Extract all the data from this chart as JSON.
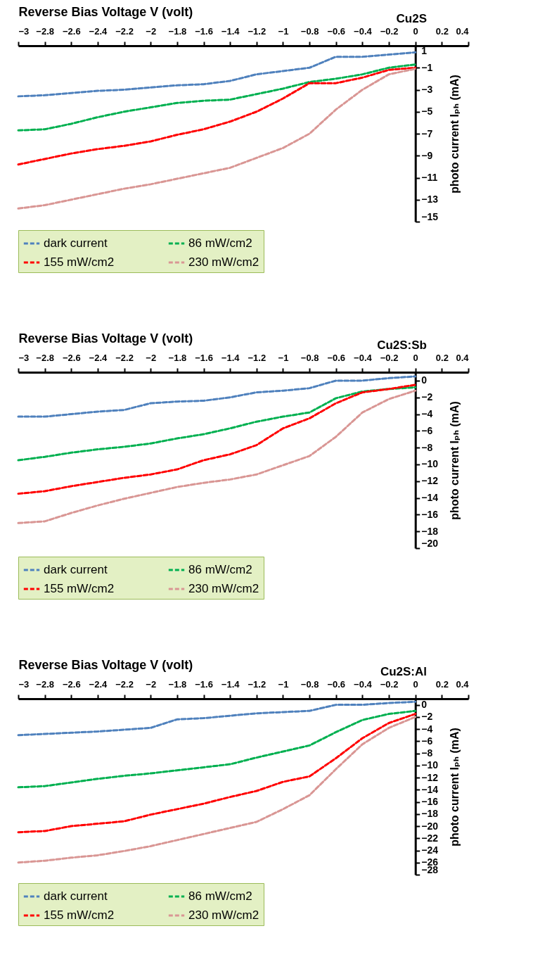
{
  "chart_data": [
    {
      "type": "line",
      "title": "Cu2S",
      "xlabel": "Reverse Bias Voltage    V (volt)",
      "ylabel": "photo current Iₚₕ (mA)",
      "x": [
        -3,
        -2.8,
        -2.6,
        -2.4,
        -2.2,
        -2,
        -1.8,
        -1.6,
        -1.4,
        -1.2,
        -1,
        -0.8,
        -0.6,
        -0.4,
        -0.2,
        0
      ],
      "xlim": [
        -3,
        0.4
      ],
      "xticks": [
        -3,
        -2.8,
        -2.6,
        -2.4,
        -2.2,
        -2,
        -1.8,
        -1.6,
        -1.4,
        -1.2,
        -1,
        -0.8,
        -0.6,
        -0.4,
        -0.2,
        0,
        0.2,
        0.4
      ],
      "ylim": [
        -15,
        1
      ],
      "yticks": [
        1,
        -1,
        -3,
        -5,
        -7,
        -9,
        -11,
        -13,
        -15
      ],
      "grid": false,
      "legend": "bottom",
      "line_style": "dashed",
      "series": [
        {
          "name": "dark current",
          "color": "#4f81bd",
          "values": [
            -3.6,
            -3.5,
            -3.3,
            -3.1,
            -3.0,
            -2.8,
            -2.6,
            -2.5,
            -2.2,
            -1.6,
            -1.3,
            -1.0,
            0,
            0,
            0.2,
            0.4
          ]
        },
        {
          "name": "86 mW/cm2",
          "color": "#00b050",
          "values": [
            -6.7,
            -6.6,
            -6.1,
            -5.5,
            -5.0,
            -4.6,
            -4.2,
            -4.0,
            -3.9,
            -3.4,
            -2.9,
            -2.3,
            -2.0,
            -1.6,
            -1.0,
            -0.7
          ]
        },
        {
          "name": "155 mW/cm2",
          "color": "#ff0000",
          "values": [
            -9.8,
            -9.3,
            -8.8,
            -8.4,
            -8.1,
            -7.7,
            -7.1,
            -6.6,
            -5.9,
            -5.0,
            -3.8,
            -2.4,
            -2.4,
            -1.9,
            -1.2,
            -1.0
          ]
        },
        {
          "name": "230 mW/cm2",
          "color": "#d99694",
          "values": [
            -13.8,
            -13.5,
            -13.0,
            -12.5,
            -12.0,
            -11.6,
            -11.1,
            -10.6,
            -10.1,
            -9.2,
            -8.3,
            -7.0,
            -4.8,
            -3.0,
            -1.6,
            -1.1
          ]
        }
      ]
    },
    {
      "type": "line",
      "title": "Cu2S:Sb",
      "xlabel": "Reverse Bias Voltage    V (volt)",
      "ylabel": "photo current Iₚₕ (mA)",
      "x": [
        -3,
        -2.8,
        -2.6,
        -2.4,
        -2.2,
        -2,
        -1.8,
        -1.6,
        -1.4,
        -1.2,
        -1,
        -0.8,
        -0.6,
        -0.4,
        -0.2,
        0
      ],
      "xlim": [
        -3,
        0.4
      ],
      "xticks": [
        -3,
        -2.8,
        -2.6,
        -2.4,
        -2.2,
        -2,
        -1.8,
        -1.6,
        -1.4,
        -1.2,
        -1,
        -0.8,
        -0.6,
        -0.4,
        -0.2,
        0,
        0.2,
        0.4
      ],
      "ylim": [
        -20,
        1
      ],
      "yticks": [
        0,
        -2,
        -4,
        -6,
        -8,
        -10,
        -12,
        -14,
        -16,
        -18,
        -20
      ],
      "grid": false,
      "legend": "bottom",
      "line_style": "dashed",
      "series": [
        {
          "name": "dark current",
          "color": "#4f81bd",
          "values": [
            -4.3,
            -4.3,
            -4.0,
            -3.7,
            -3.5,
            -2.7,
            -2.5,
            -2.4,
            -2.0,
            -1.4,
            -1.2,
            -0.9,
            0,
            0,
            0.3,
            0.5
          ]
        },
        {
          "name": "86 mW/cm2",
          "color": "#00b050",
          "values": [
            -9.5,
            -9.1,
            -8.6,
            -8.2,
            -7.9,
            -7.5,
            -6.9,
            -6.4,
            -5.7,
            -4.9,
            -4.3,
            -3.8,
            -2.1,
            -1.3,
            -1.0,
            -0.8
          ]
        },
        {
          "name": "155 mW/cm2",
          "color": "#ff0000",
          "values": [
            -13.5,
            -13.2,
            -12.6,
            -12.1,
            -11.6,
            -11.2,
            -10.6,
            -9.5,
            -8.8,
            -7.7,
            -5.7,
            -4.5,
            -2.7,
            -1.4,
            -1.0,
            -0.5
          ]
        },
        {
          "name": "230 mW/cm2",
          "color": "#d99694",
          "values": [
            -17.0,
            -16.8,
            -15.8,
            -14.9,
            -14.1,
            -13.4,
            -12.7,
            -12.2,
            -11.8,
            -11.2,
            -10.1,
            -9.0,
            -6.7,
            -3.8,
            -2.2,
            -1.2
          ]
        }
      ]
    },
    {
      "type": "line",
      "title": "Cu2S:Al",
      "xlabel": "Reverse Bias Voltage    V (volt)",
      "ylabel": "photo current Iₚₕ (mA)",
      "x": [
        -3,
        -2.8,
        -2.6,
        -2.4,
        -2.2,
        -2,
        -1.8,
        -1.6,
        -1.4,
        -1.2,
        -1,
        -0.8,
        -0.6,
        -0.4,
        -0.2,
        0
      ],
      "xlim": [
        -3,
        0.4
      ],
      "xticks": [
        -3,
        -2.8,
        -2.6,
        -2.4,
        -2.2,
        -2,
        -1.8,
        -1.6,
        -1.4,
        -1.2,
        -1,
        -0.8,
        -0.6,
        -0.4,
        -0.2,
        0,
        0.2,
        0.4
      ],
      "ylim": [
        -28,
        1
      ],
      "yticks": [
        0,
        -2,
        -4,
        -6,
        -8,
        -10,
        -12,
        -14,
        -16,
        -18,
        -20,
        -22,
        -24,
        -26,
        -28
      ],
      "grid": false,
      "legend": "bottom",
      "line_style": "dashed",
      "series": [
        {
          "name": "dark current",
          "color": "#4f81bd",
          "values": [
            -5.0,
            -4.8,
            -4.6,
            -4.4,
            -4.1,
            -3.8,
            -2.4,
            -2.2,
            -1.8,
            -1.4,
            -1.2,
            -1.0,
            0,
            0,
            0.3,
            0.5
          ]
        },
        {
          "name": "86 mW/cm2",
          "color": "#00b050",
          "values": [
            -13.6,
            -13.4,
            -12.8,
            -12.2,
            -11.7,
            -11.3,
            -10.8,
            -10.3,
            -9.8,
            -8.7,
            -7.7,
            -6.7,
            -4.5,
            -2.5,
            -1.5,
            -1.0
          ]
        },
        {
          "name": "155 mW/cm2",
          "color": "#ff0000",
          "values": [
            -21.0,
            -20.8,
            -20.0,
            -19.6,
            -19.2,
            -18.1,
            -17.2,
            -16.3,
            -15.2,
            -14.2,
            -12.7,
            -11.8,
            -8.8,
            -5.5,
            -3.0,
            -1.5
          ]
        },
        {
          "name": "230 mW/cm2",
          "color": "#d99694",
          "values": [
            -26.0,
            -25.7,
            -25.2,
            -24.8,
            -24.1,
            -23.3,
            -22.3,
            -21.3,
            -20.3,
            -19.3,
            -17.2,
            -14.9,
            -10.6,
            -6.5,
            -3.8,
            -2.0
          ]
        }
      ]
    }
  ]
}
